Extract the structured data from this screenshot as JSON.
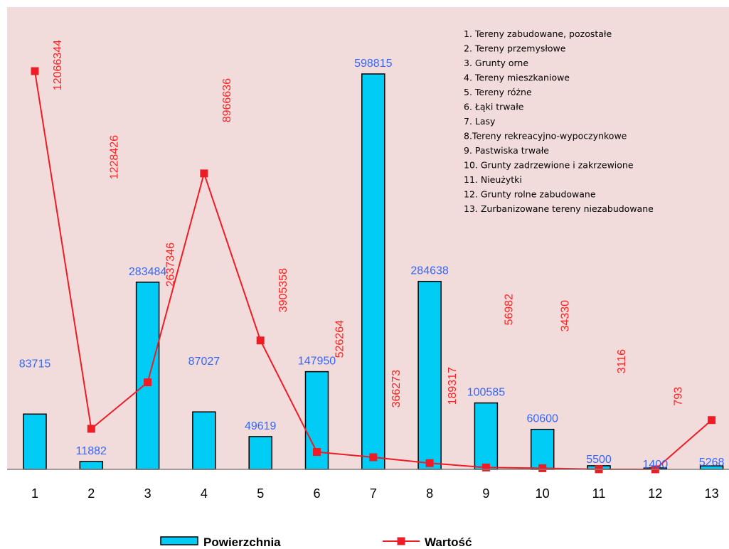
{
  "chart_data": {
    "type": "bar",
    "categories": [
      "1",
      "2",
      "3",
      "4",
      "5",
      "6",
      "7",
      "8",
      "9",
      "10",
      "11",
      "12",
      "13"
    ],
    "series": [
      {
        "name": "Powierzchnia",
        "type": "bar",
        "color": "#00ccf5",
        "values": [
          83715,
          11882,
          283484,
          87027,
          49619,
          147950,
          598815,
          284638,
          100585,
          60600,
          5500,
          1400,
          5268
        ]
      },
      {
        "name": "Wartość",
        "type": "line",
        "color": "#ee1c25",
        "values": [
          12066344,
          1228426,
          2637346,
          8966636,
          3905358,
          526264,
          366273,
          189317,
          56982,
          34330,
          3116,
          793,
          1492894
        ]
      }
    ],
    "notes": [
      "1. Tereny zabudowane, pozostałe",
      "2. Tereny przemysłowe",
      "3. Grunty orne",
      "4. Tereny mieszkaniowe",
      "5. Tereny różne",
      "6. Łąki trwałe",
      "7. Lasy",
      "8.Tereny rekreacyjno-wypoczynkowe",
      "9. Pastwiska trwałe",
      "10. Grunty zadrzewione i zakrzewione",
      "11. Nieużytki",
      "12. Grunty rolne zabudowane",
      "13. Zurbanizowane tereny niezabudowane"
    ],
    "plot_background": "#f2dcdb",
    "legend_position": "bottom",
    "grid": false
  }
}
